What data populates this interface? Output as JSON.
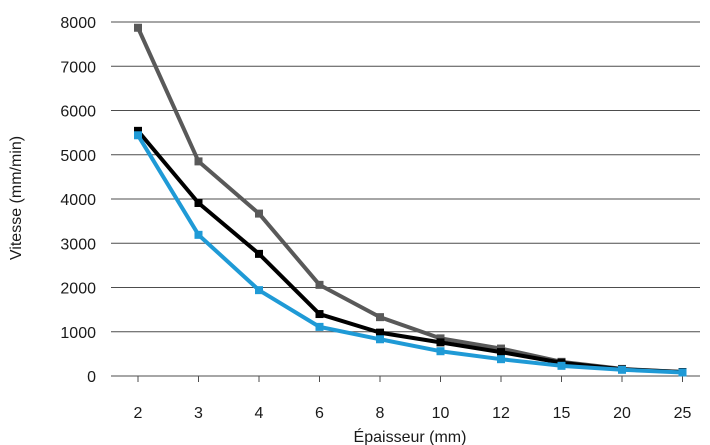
{
  "chart_data": {
    "type": "line",
    "xlabel": "Épaisseur (mm)",
    "ylabel": "Vitesse (mm/min)",
    "categories": [
      "2",
      "3",
      "4",
      "6",
      "8",
      "10",
      "12",
      "15",
      "20",
      "25"
    ],
    "ylim": [
      0,
      8000
    ],
    "yticks": [
      0,
      1000,
      2000,
      3000,
      4000,
      5000,
      6000,
      7000,
      8000
    ],
    "grid": true,
    "series": [
      {
        "color": "#595959",
        "values": [
          7870,
          4850,
          3670,
          2060,
          1330,
          850,
          620,
          320,
          160,
          90
        ]
      },
      {
        "color": "#000000",
        "values": [
          5540,
          3910,
          2760,
          1400,
          980,
          760,
          540,
          300,
          150,
          90
        ]
      },
      {
        "color": "#1f9ad6",
        "values": [
          5440,
          3190,
          1940,
          1110,
          830,
          560,
          380,
          230,
          140,
          80
        ]
      }
    ]
  }
}
